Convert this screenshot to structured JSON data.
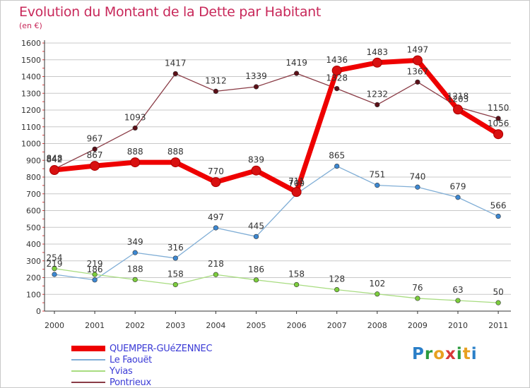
{
  "title": "Evolution du Montant de la Dette par Habitant",
  "unit": "(en €)",
  "logo": {
    "text": "Proxiti",
    "letter_colors": [
      "#2a7fc8",
      "#2a9a3c",
      "#e8a020",
      "#d83838",
      "#2a9a3c",
      "#e8a020",
      "#2a7fc8"
    ]
  },
  "chart_data": {
    "type": "line",
    "title": "Evolution du Montant de la Dette par Habitant",
    "unit": "(en €)",
    "x": [
      "2000",
      "2001",
      "2002",
      "2003",
      "2004",
      "2005",
      "2006",
      "2007",
      "2008",
      "2009",
      "2010",
      "2011"
    ],
    "y_ticks": [
      "0",
      "100",
      "200",
      "300",
      "400",
      "500",
      "600",
      "700",
      "800",
      "900",
      "1000",
      "1100",
      "1200",
      "1300",
      "1400",
      "1500",
      "1600"
    ],
    "ylim": [
      0,
      1600
    ],
    "grid": "horizontal",
    "legend_position": "bottom-left",
    "series": [
      {
        "name": "QUEMPER-GUéZENNEC",
        "values": [
          842,
          867,
          888,
          888,
          770,
          839,
          711,
          1436,
          1483,
          1497,
          1203,
          1056
        ],
        "labels": [
          "842",
          "867",
          "888",
          "888",
          "770",
          "839",
          "711",
          "1436",
          "1483",
          "1497",
          "1203",
          "1056"
        ],
        "color": "#ee0000",
        "marker": "#d81010",
        "highlight": true
      },
      {
        "name": "Le Faouët",
        "values": [
          219,
          186,
          349,
          316,
          497,
          445,
          700,
          865,
          751,
          740,
          679,
          566
        ],
        "labels": [
          "219",
          "186",
          "349",
          "316",
          "497",
          "445",
          "700",
          "865",
          "751",
          "740",
          "679",
          "566"
        ],
        "color": "#80aed6",
        "marker": "#3c88d2",
        "highlight": false
      },
      {
        "name": "Yvias",
        "values": [
          254,
          219,
          188,
          158,
          218,
          186,
          158,
          128,
          102,
          76,
          63,
          50
        ],
        "labels": [
          "254",
          "219",
          "188",
          "158",
          "218",
          "186",
          "158",
          "128",
          "102",
          "76",
          "63",
          "50"
        ],
        "color": "#a8dc80",
        "marker": "#7ccd3c",
        "highlight": false
      },
      {
        "name": "Pontrieux",
        "values": [
          848,
          967,
          1093,
          1417,
          1312,
          1339,
          1419,
          1328,
          1232,
          1367,
          1218,
          1150
        ],
        "labels": [
          "848",
          "967",
          "1093",
          "1417",
          "1312",
          "1339",
          "1419",
          "1328",
          "1232",
          "1367",
          "1218",
          "1150"
        ],
        "color": "#8a3c46",
        "marker": "#5c1018",
        "highlight": false
      }
    ]
  }
}
